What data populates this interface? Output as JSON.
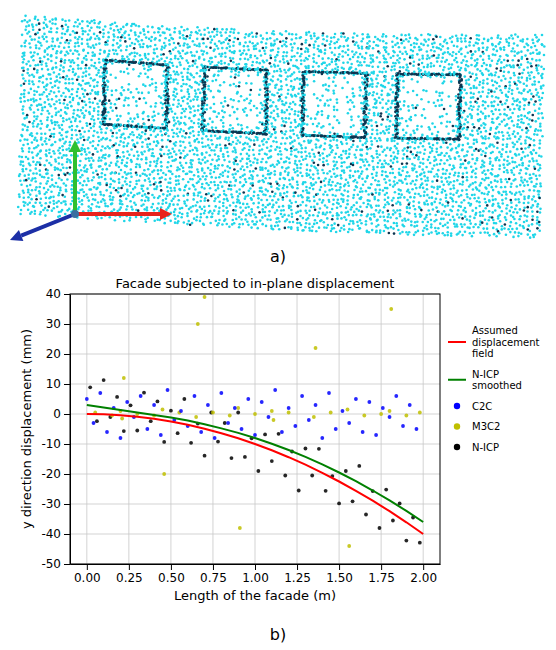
{
  "panel_labels": [
    "a)",
    "b)"
  ],
  "chart_data": {
    "type": "scatter",
    "title": "Facade subjected to in-plane displacement",
    "x_label": "Length of the facade (m)",
    "y_label": "y direction displacement (mm)",
    "xlim": [
      -0.1,
      2.1
    ],
    "ylim": [
      -50,
      40
    ],
    "xticks": [
      {
        "value": 0,
        "label": "0.00"
      },
      {
        "value": 0.25,
        "label": "0.25"
      },
      {
        "value": 0.5,
        "label": "0.50"
      },
      {
        "value": 0.75,
        "label": "0.75"
      },
      {
        "value": 1,
        "label": "1.00"
      },
      {
        "value": 1.25,
        "label": "1.25"
      },
      {
        "value": 1.5,
        "label": "1.50"
      },
      {
        "value": 1.75,
        "label": "1.75"
      },
      {
        "value": 2,
        "label": "2.00"
      }
    ],
    "yticks": [
      -50,
      -40,
      -30,
      -20,
      -10,
      0,
      10,
      20,
      30,
      40
    ],
    "grid": true,
    "legend": "right",
    "series": [
      {
        "name": "Assumed displacement field",
        "color": "#ff0000",
        "type": "line",
        "line_style": "solid",
        "x": [
          0,
          0.1,
          0.2,
          0.3,
          0.4,
          0.5,
          0.6,
          0.7,
          0.8,
          0.9,
          1,
          1.1,
          1.2,
          1.3,
          1.4,
          1.5,
          1.6,
          1.7,
          1.8,
          1.9,
          2
        ],
        "values": [
          0,
          -0.1,
          -0.4,
          -0.9,
          -1.6,
          -2.5,
          -3.6,
          -4.9,
          -6.4,
          -8.1,
          -10,
          -12.1,
          -14.4,
          -16.9,
          -19.6,
          -22.5,
          -25.6,
          -28.9,
          -32.4,
          -36.1,
          -40
        ]
      },
      {
        "name": "N-ICP smoothed",
        "color": "#008000",
        "type": "line",
        "line_style": "solid",
        "x": [
          0,
          0.1,
          0.2,
          0.3,
          0.4,
          0.5,
          0.6,
          0.7,
          0.8,
          0.9,
          1,
          1.1,
          1.2,
          1.3,
          1.4,
          1.5,
          1.6,
          1.7,
          1.8,
          1.9,
          2
        ],
        "values": [
          3,
          2.2,
          1.3,
          0.5,
          -0.3,
          -1.2,
          -2.2,
          -3.4,
          -4.8,
          -6.3,
          -8,
          -9.9,
          -12,
          -14.3,
          -16.8,
          -19.5,
          -22.4,
          -25.5,
          -28.8,
          -32.3,
          -36
        ]
      },
      {
        "name": "C2C",
        "color": "#0000ff",
        "type": "scatter",
        "marker": "circle",
        "x": [
          0,
          0.04,
          0.08,
          0.12,
          0.16,
          0.2,
          0.24,
          0.28,
          0.32,
          0.36,
          0.4,
          0.44,
          0.48,
          0.52,
          0.56,
          0.6,
          0.64,
          0.68,
          0.72,
          0.76,
          0.8,
          0.84,
          0.88,
          0.92,
          0.96,
          1,
          1.04,
          1.08,
          1.12,
          1.16,
          1.2,
          1.24,
          1.28,
          1.32,
          1.36,
          1.4,
          1.44,
          1.48,
          1.52,
          1.56,
          1.6,
          1.64,
          1.68,
          1.72,
          1.76,
          1.8,
          1.84,
          1.88,
          1.92,
          1.96
        ],
        "values": [
          5,
          -3,
          7,
          -6,
          2,
          -8,
          4,
          -1,
          6,
          -5,
          3,
          -7,
          8,
          -2,
          1,
          -4,
          6,
          -6,
          3,
          -8,
          7,
          -3,
          2,
          -5,
          5,
          -7,
          4,
          -1,
          8,
          -6,
          2,
          -4,
          6,
          -2,
          3,
          -8,
          7,
          -5,
          1,
          -3,
          5,
          -6,
          4,
          -7,
          2,
          -1,
          6,
          -4,
          3,
          -5
        ]
      },
      {
        "name": "M3C2",
        "color": "#bfbf00",
        "type": "scatter",
        "marker": "circle",
        "x": [
          0.05,
          0.15,
          0.2,
          0.21,
          0.22,
          0.3,
          0.4,
          0.45,
          0.46,
          0.55,
          0.65,
          0.66,
          0.7,
          0.75,
          0.85,
          0.9,
          0.91,
          1,
          1.1,
          1.11,
          1.2,
          1.35,
          1.36,
          1.45,
          1.55,
          1.56,
          1.65,
          1.75,
          1.8,
          1.81,
          1.9,
          1.98
        ],
        "values": [
          0.5,
          -0.5,
          1,
          -1.5,
          12,
          0,
          -0.5,
          1.5,
          -20,
          0.5,
          -1,
          30,
          39,
          0.5,
          -0.5,
          2,
          -38,
          0,
          1,
          -2,
          0.5,
          -1,
          22,
          0.5,
          1.5,
          -44,
          -0.5,
          0,
          1,
          35,
          -0.5,
          0.5
        ]
      },
      {
        "name": "N-ICP",
        "color": "#000000",
        "type": "scatter",
        "marker": "circle",
        "x": [
          0.02,
          0.06,
          0.1,
          0.14,
          0.18,
          0.22,
          0.26,
          0.3,
          0.34,
          0.38,
          0.42,
          0.46,
          0.5,
          0.54,
          0.58,
          0.62,
          0.66,
          0.7,
          0.74,
          0.78,
          0.82,
          0.86,
          0.9,
          0.94,
          0.98,
          1.02,
          1.06,
          1.1,
          1.14,
          1.18,
          1.22,
          1.26,
          1.3,
          1.34,
          1.38,
          1.42,
          1.46,
          1.5,
          1.54,
          1.58,
          1.62,
          1.66,
          1.7,
          1.74,
          1.78,
          1.82,
          1.86,
          1.9,
          1.94,
          1.98
        ],
        "values": [
          8.9,
          -2.4,
          11.3,
          -1,
          5.7,
          -5.7,
          2.9,
          -5.5,
          7.1,
          -2.4,
          4.2,
          -9.3,
          1.1,
          -6.4,
          5,
          -9.6,
          -3.2,
          -13.9,
          0.5,
          -9.2,
          -3,
          -14.7,
          0.5,
          -14.3,
          -8.1,
          -19,
          -6.8,
          -15.7,
          -6.6,
          -20.5,
          -12.5,
          -25.5,
          -11.5,
          -20.5,
          -11.6,
          -25.6,
          -20.7,
          -29.8,
          -19,
          -29.1,
          -17.3,
          -33.5,
          -25.7,
          -38,
          -25.2,
          -35.5,
          -29.8,
          -42.2,
          -34.5,
          -42.9
        ]
      }
    ]
  }
}
